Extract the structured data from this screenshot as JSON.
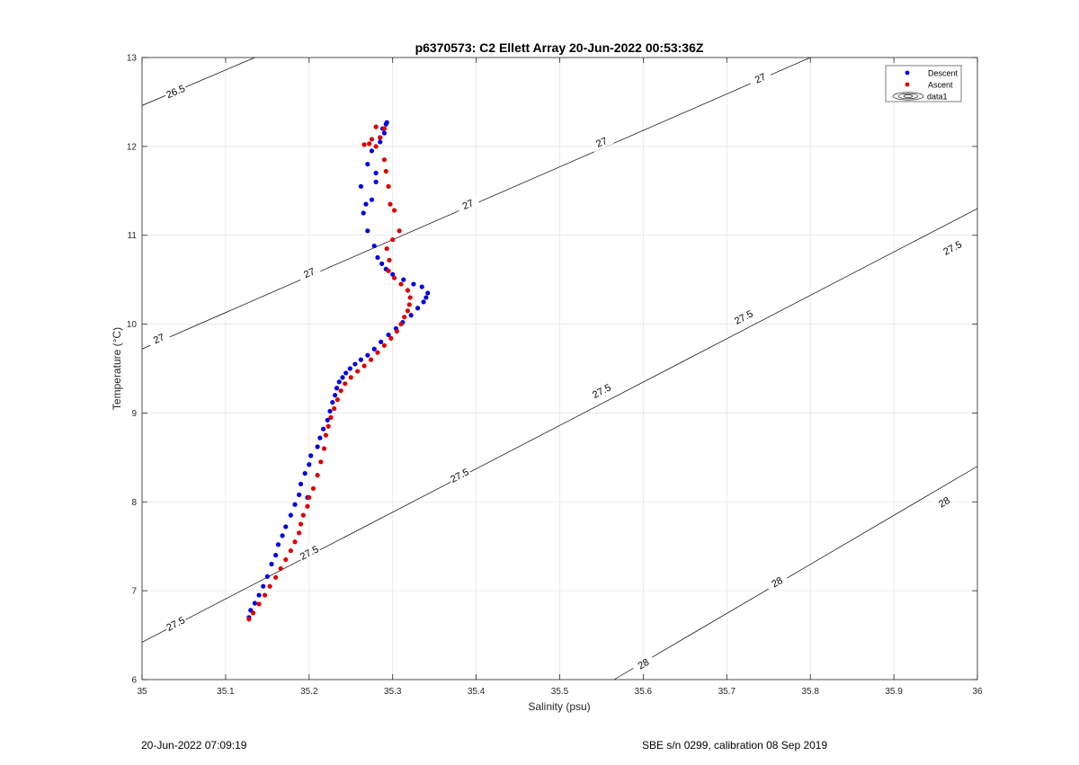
{
  "footer": {
    "left": "20-Jun-2022 07:09:19",
    "right": "SBE s/n 0299, calibration 08 Sep 2019"
  },
  "chart_data": {
    "type": "scatter",
    "title": "p6370573: C2 Ellett Array 20-Jun-2022 00:53:36Z",
    "xlabel": "Salinity (psu)",
    "ylabel": "Temperature (°C)",
    "xlim": [
      35,
      36
    ],
    "ylim": [
      6,
      13
    ],
    "xticks": [
      "35",
      "35.1",
      "35.2",
      "35.3",
      "35.4",
      "35.5",
      "35.6",
      "35.7",
      "35.8",
      "35.9",
      "36"
    ],
    "yticks": [
      "6",
      "7",
      "8",
      "9",
      "10",
      "11",
      "12",
      "13"
    ],
    "grid": true,
    "legend_position": "top-right",
    "legend": [
      "Descent",
      "Ascent",
      "data1"
    ],
    "colors": {
      "descent": "#0000e0",
      "ascent": "#dd0000",
      "contour": "#000000",
      "grid": "#e6e6e6"
    },
    "series": [
      {
        "name": "Descent",
        "x": [
          35.128,
          35.13,
          35.135,
          35.14,
          35.145,
          35.15,
          35.155,
          35.16,
          35.163,
          35.168,
          35.172,
          35.178,
          35.183,
          35.188,
          35.19,
          35.195,
          35.198,
          35.2,
          35.202,
          35.21,
          35.213,
          35.217,
          35.222,
          35.225,
          35.228,
          35.231,
          35.233,
          35.236,
          35.24,
          35.244,
          35.249,
          35.255,
          35.262,
          35.27,
          35.278,
          35.286,
          35.295,
          35.304,
          35.312,
          35.322,
          35.33,
          35.337,
          35.34,
          35.342,
          35.335,
          35.325,
          35.313,
          35.3,
          35.292,
          35.287,
          35.282,
          35.278,
          35.27,
          35.265,
          35.275,
          35.28,
          35.27,
          35.262,
          35.28,
          35.268,
          35.275,
          35.285,
          35.29,
          35.292,
          35.288,
          35.285,
          35.293
        ],
        "y": [
          6.7,
          6.78,
          6.86,
          6.95,
          7.05,
          7.16,
          7.3,
          7.4,
          7.52,
          7.62,
          7.72,
          7.85,
          7.97,
          8.08,
          8.2,
          8.32,
          8.05,
          8.42,
          8.52,
          8.62,
          8.72,
          8.82,
          8.92,
          9.02,
          9.12,
          9.2,
          9.28,
          9.35,
          9.4,
          9.45,
          9.5,
          9.55,
          9.6,
          9.65,
          9.72,
          9.8,
          9.88,
          9.95,
          10.02,
          10.1,
          10.18,
          10.25,
          10.3,
          10.35,
          10.42,
          10.45,
          10.5,
          10.56,
          10.62,
          10.68,
          10.75,
          10.88,
          11.05,
          11.25,
          11.4,
          11.6,
          11.8,
          11.55,
          11.7,
          11.35,
          11.95,
          12.05,
          12.15,
          12.25,
          12.2,
          12.1,
          12.27
        ]
      },
      {
        "name": "Ascent",
        "x": [
          35.128,
          35.133,
          35.14,
          35.147,
          35.153,
          35.16,
          35.166,
          35.172,
          35.178,
          35.183,
          35.188,
          35.19,
          35.193,
          35.198,
          35.2,
          35.205,
          35.21,
          35.214,
          35.218,
          35.22,
          35.223,
          35.226,
          35.23,
          35.234,
          35.238,
          35.243,
          35.25,
          35.258,
          35.266,
          35.274,
          35.282,
          35.29,
          35.298,
          35.305,
          35.31,
          35.314,
          35.318,
          35.32,
          35.321,
          35.318,
          35.31,
          35.302,
          35.295,
          35.296,
          35.293,
          35.3,
          35.308,
          35.302,
          35.297,
          35.295,
          35.292,
          35.29,
          35.28,
          35.272,
          35.266,
          35.275,
          35.285,
          35.29,
          35.28
        ],
        "y": [
          6.68,
          6.75,
          6.85,
          6.95,
          7.05,
          7.15,
          7.25,
          7.35,
          7.45,
          7.55,
          7.65,
          7.75,
          7.85,
          7.95,
          8.05,
          8.15,
          8.3,
          8.45,
          8.6,
          8.75,
          8.85,
          8.95,
          9.05,
          9.15,
          9.25,
          9.33,
          9.4,
          9.47,
          9.53,
          9.6,
          9.68,
          9.76,
          9.84,
          9.92,
          10.0,
          10.08,
          10.15,
          10.22,
          10.3,
          10.38,
          10.45,
          10.52,
          10.6,
          10.72,
          10.85,
          10.95,
          11.05,
          11.28,
          11.35,
          11.55,
          11.72,
          11.85,
          12.0,
          12.03,
          12.02,
          12.08,
          12.1,
          12.2,
          12.22
        ]
      }
    ],
    "contours": [
      {
        "label": "26.5",
        "points": [
          [
            35.0,
            12.46
          ],
          [
            35.135,
            13.0
          ]
        ],
        "label_at": [
          [
            35.04,
            12.62
          ]
        ]
      },
      {
        "label": "27",
        "points": [
          [
            35.0,
            9.72
          ],
          [
            35.8,
            13.0
          ]
        ],
        "label_at": [
          [
            35.02,
            9.84
          ],
          [
            35.2,
            10.58
          ],
          [
            35.39,
            11.35
          ],
          [
            35.55,
            12.05
          ],
          [
            35.74,
            12.77
          ]
        ]
      },
      {
        "label": "27.5",
        "points": [
          [
            35.0,
            6.42
          ],
          [
            36.0,
            11.3
          ]
        ],
        "label_at": [
          [
            35.04,
            6.63
          ],
          [
            35.2,
            7.43
          ],
          [
            35.38,
            8.3
          ],
          [
            35.55,
            9.25
          ],
          [
            35.72,
            10.08
          ],
          [
            35.97,
            10.86
          ]
        ]
      },
      {
        "label": "28",
        "points": [
          [
            35.565,
            6.0
          ],
          [
            36.0,
            8.4
          ]
        ],
        "label_at": [
          [
            35.6,
            6.18
          ],
          [
            35.76,
            7.1
          ],
          [
            35.96,
            8.0
          ]
        ]
      }
    ]
  }
}
